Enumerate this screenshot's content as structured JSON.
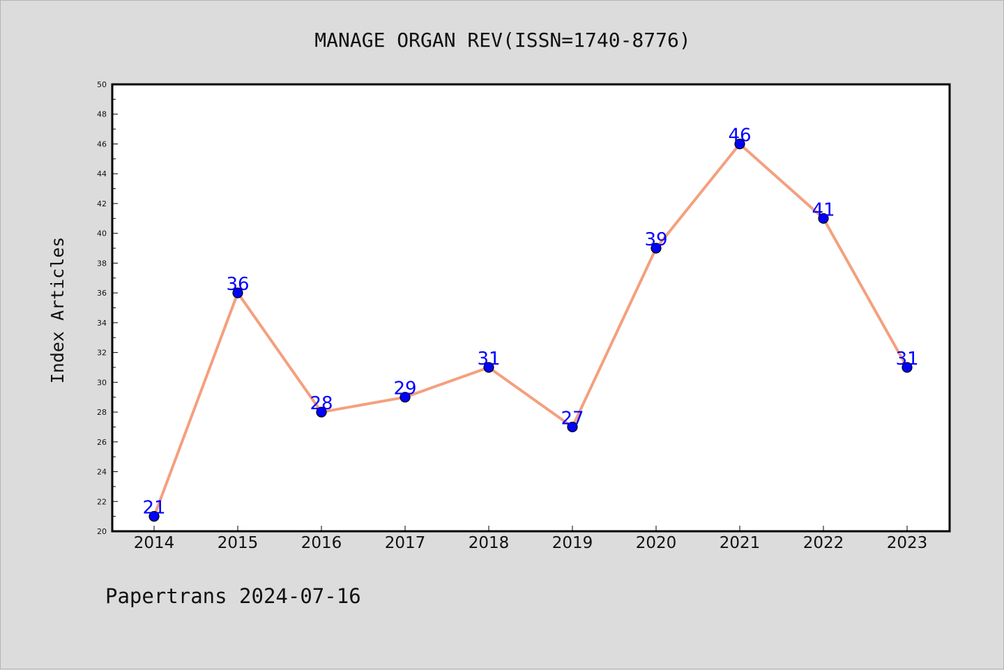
{
  "chart_data": {
    "type": "line",
    "title": "MANAGE ORGAN REV(ISSN=1740-8776)",
    "xlabel": "",
    "ylabel": "Index Articles",
    "categories": [
      "2014",
      "2015",
      "2016",
      "2017",
      "2018",
      "2019",
      "2020",
      "2021",
      "2022",
      "2023"
    ],
    "series": [
      {
        "values": [
          21,
          36,
          28,
          29,
          31,
          27,
          39,
          46,
          41,
          31
        ]
      }
    ],
    "ylim": [
      20,
      50
    ],
    "ytick_step": 2,
    "grid": false,
    "data_labels": true,
    "line_color": "#f4a07e",
    "marker_color": "#0000ff",
    "label_color": "#0000ff"
  },
  "footer": {
    "text": "Papertrans 2024-07-16"
  }
}
